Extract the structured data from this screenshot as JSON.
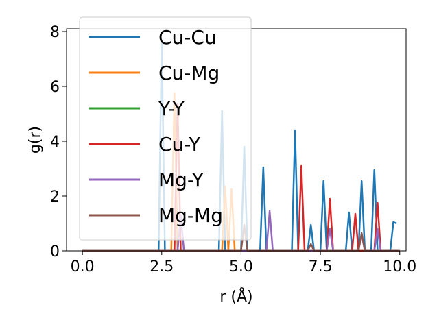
{
  "chart_data": {
    "type": "line",
    "title": "",
    "xlabel": "r (Å)",
    "ylabel": "g(r)",
    "xlim": [
      -0.5,
      10.2
    ],
    "ylim": [
      0,
      8.1
    ],
    "xticks": [
      0.0,
      2.5,
      5.0,
      7.5,
      10.0
    ],
    "xtick_labels": [
      "0.0",
      "2.5",
      "5.0",
      "7.5",
      "10.0"
    ],
    "yticks": [
      0,
      2,
      4,
      6,
      8
    ],
    "ytick_labels": [
      "0",
      "2",
      "4",
      "6",
      "8"
    ],
    "grid": false,
    "legend_position": "upper-left",
    "series": [
      {
        "name": "Cu-Cu",
        "color": "#1f77b4",
        "x": [
          0,
          2.4,
          2.5,
          2.6,
          4.3,
          4.4,
          4.5,
          5.0,
          5.1,
          5.2,
          5.6,
          5.7,
          5.8,
          6.6,
          6.7,
          6.8,
          7.1,
          7.2,
          7.3,
          7.5,
          7.6,
          7.7,
          8.3,
          8.4,
          8.5,
          8.7,
          8.8,
          8.9,
          9.1,
          9.2,
          9.3,
          9.7,
          9.8,
          9.9
        ],
        "y": [
          0,
          0,
          7.7,
          0,
          0,
          5.1,
          0,
          0,
          3.8,
          0,
          0,
          3.05,
          0,
          0,
          4.4,
          0,
          0,
          0.95,
          0,
          0,
          2.55,
          0,
          0,
          1.4,
          0,
          0,
          2.55,
          0,
          0,
          2.95,
          0,
          0,
          1.05,
          1.0
        ]
      },
      {
        "name": "Cu-Mg",
        "color": "#ff7f0e",
        "x": [
          0,
          2.8,
          2.9,
          3.0,
          4.4,
          4.5,
          4.6,
          4.7,
          4.8,
          10
        ],
        "y": [
          0,
          0,
          5.75,
          0,
          0,
          2.35,
          0,
          2.25,
          0,
          0
        ]
      },
      {
        "name": "Y-Y",
        "color": "#2ca02c",
        "x": [
          0,
          10
        ],
        "y": [
          0,
          0
        ]
      },
      {
        "name": "Cu-Y",
        "color": "#d62728",
        "x": [
          0,
          2.9,
          3.0,
          3.1,
          6.8,
          6.9,
          7.0,
          7.7,
          7.8,
          7.9,
          8.5,
          8.6,
          8.7,
          9.2,
          9.3,
          9.4,
          10
        ],
        "y": [
          0,
          0,
          5.35,
          0,
          0,
          3.1,
          0,
          0,
          1.9,
          0,
          0,
          1.35,
          0,
          0,
          1.75,
          0,
          0
        ]
      },
      {
        "name": "Mg-Y",
        "color": "#9467bd",
        "x": [
          0,
          3.0,
          3.1,
          3.2,
          5.8,
          5.9,
          6.0,
          7.7,
          7.8,
          7.9,
          8.7,
          8.8,
          8.9,
          9.2,
          9.3,
          9.4,
          10
        ],
        "y": [
          0,
          0,
          1.3,
          0,
          0,
          1.45,
          0,
          0,
          0.8,
          0,
          0,
          0.6,
          0,
          0,
          0.8,
          0,
          0
        ]
      },
      {
        "name": "Mg-Mg",
        "color": "#8c564b",
        "x": [
          0,
          5.0,
          5.1,
          5.2,
          7.1,
          7.2,
          7.3,
          8.7,
          8.8,
          8.9,
          10
        ],
        "y": [
          0,
          0,
          0.95,
          0,
          0,
          0.25,
          0,
          0,
          0.65,
          0,
          0
        ]
      }
    ]
  }
}
